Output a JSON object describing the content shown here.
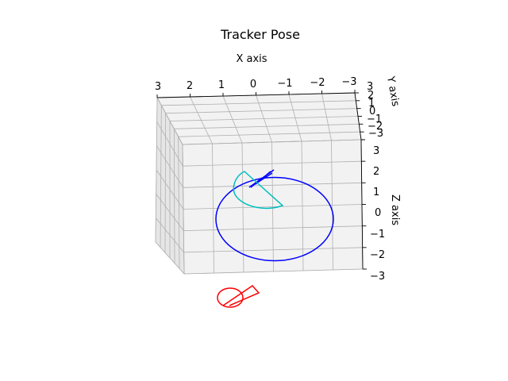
{
  "chart_data": {
    "type": "3d-line",
    "title": "Tracker Pose",
    "xlabel": "X axis",
    "ylabel": "Y axis",
    "zlabel": "Z axis",
    "xlim": [
      -3,
      3
    ],
    "ylim": [
      -3,
      3
    ],
    "zlim": [
      -3,
      3
    ],
    "x_ticks": [
      "3",
      "2",
      "1",
      "0",
      "−1",
      "−2",
      "−3"
    ],
    "y_ticks": [
      "3",
      "2",
      "1",
      "0",
      "−1",
      "−2",
      "−3"
    ],
    "z_ticks": [
      "3",
      "2",
      "1",
      "0",
      "−1",
      "−2",
      "−3"
    ],
    "grid": true,
    "series": [
      {
        "color": "#0000ff"
      },
      {
        "color": "#00bfbf"
      },
      {
        "color": "#ff0000"
      }
    ]
  }
}
